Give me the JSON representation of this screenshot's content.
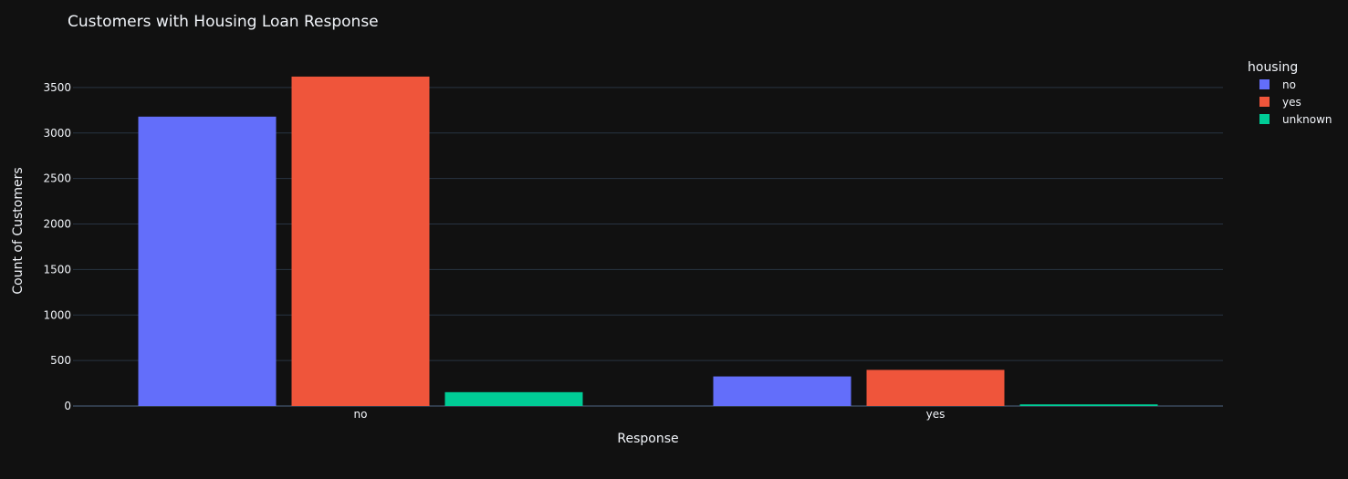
{
  "chart_data": {
    "type": "bar",
    "title": "Customers with Housing Loan Response",
    "xlabel": "Response",
    "ylabel": "Count of Customers",
    "categories": [
      "no",
      "yes"
    ],
    "series": [
      {
        "name": "no",
        "color": "#636efa",
        "values": [
          3180,
          325
        ]
      },
      {
        "name": "yes",
        "color": "#ef553b",
        "values": [
          3620,
          397
        ]
      },
      {
        "name": "unknown",
        "color": "#00cc96",
        "values": [
          152,
          18
        ]
      }
    ],
    "ylim": [
      0,
      3800
    ],
    "yticks": [
      0,
      500,
      1000,
      1500,
      2000,
      2500,
      3000,
      3500
    ],
    "grid": true,
    "legend": {
      "title": "housing",
      "placement": "top-right"
    },
    "background": "#111111",
    "text_color": "#f2f5fa",
    "grid_color": "#283442"
  }
}
